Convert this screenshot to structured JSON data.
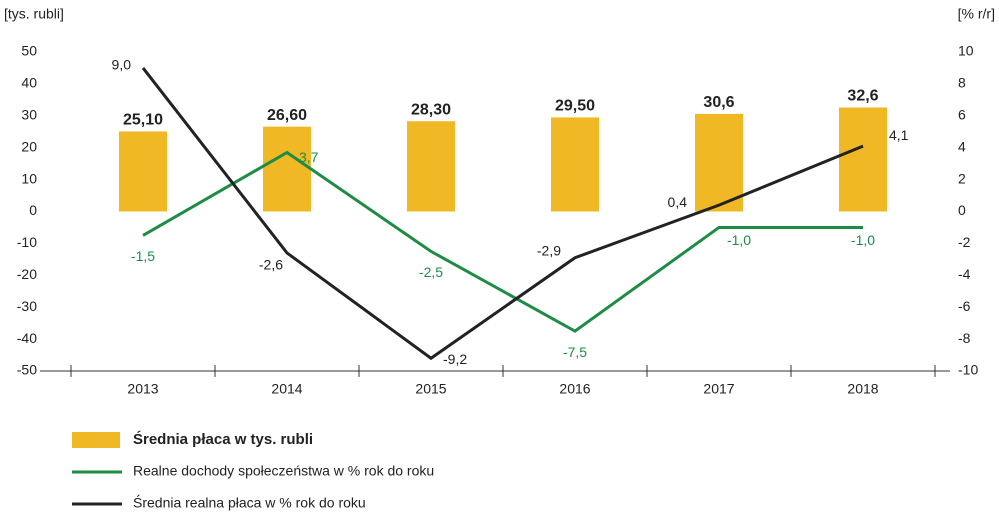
{
  "chart_data": {
    "type": "bar",
    "y_label": "[tys. rubli]",
    "y2_label": "[% r/r]",
    "categories": [
      "2013",
      "2014",
      "2015",
      "2016",
      "2017",
      "2018"
    ],
    "ylim": [
      -50,
      50
    ],
    "yticks": [
      -50,
      -40,
      -30,
      -20,
      -10,
      0,
      10,
      20,
      30,
      40,
      50
    ],
    "y2lim": [
      -10,
      10
    ],
    "y2ticks": [
      -10,
      -8,
      -6,
      -4,
      -2,
      0,
      2,
      4,
      6,
      8,
      10
    ],
    "grid": false,
    "legend": "bottom",
    "series": [
      {
        "name": "Średnia płaca w tys. rubli",
        "type": "bar",
        "axis": "y",
        "color": "#f0b824",
        "values": [
          25.1,
          26.6,
          28.3,
          29.5,
          30.6,
          32.6
        ],
        "value_labels": [
          "25,10",
          "26,60",
          "28,30",
          "29,50",
          "30,6",
          "32,6"
        ]
      },
      {
        "name": "Realne dochody społeczeństwa w % rok do roku",
        "type": "line",
        "axis": "y2",
        "color": "#1e8c45",
        "values": [
          -1.5,
          3.7,
          -2.5,
          -7.5,
          -1.0,
          -1.0
        ],
        "value_labels": [
          "-1,5",
          "3,7",
          "-2,5",
          "-7,5",
          "-1,0",
          "-1,0"
        ]
      },
      {
        "name": "Średnia realna płaca w % rok do roku",
        "type": "line",
        "axis": "y2",
        "color": "#222222",
        "values": [
          9.0,
          -2.6,
          -9.2,
          -2.9,
          0.4,
          4.1
        ],
        "value_labels": [
          "9,0",
          "-2,6",
          "-9,2",
          "-2,9",
          "0,4",
          "4,1"
        ]
      }
    ]
  }
}
